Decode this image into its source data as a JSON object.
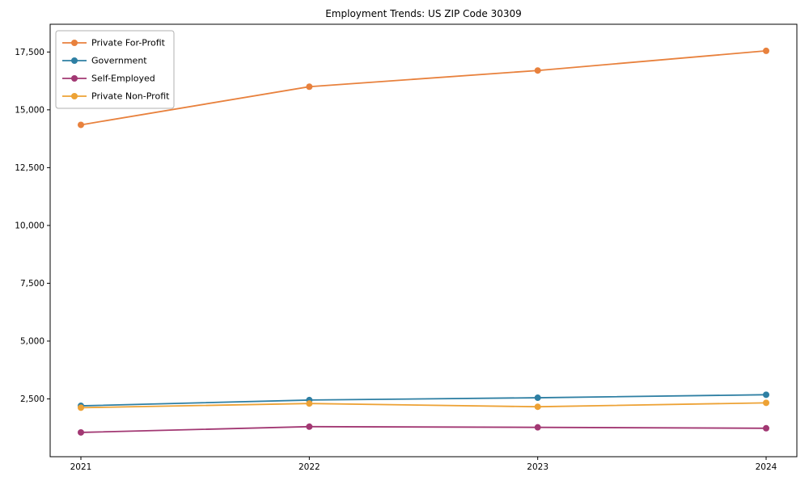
{
  "page": {
    "background_color": "#ffffff",
    "frame_color": "#000000",
    "legend_border_color": "#b0b0b0"
  },
  "chart_data": {
    "type": "line",
    "title": "Employment Trends: US ZIP Code 30309",
    "categories": [
      "2021",
      "2022",
      "2023",
      "2024"
    ],
    "series": [
      {
        "name": "Private For-Profit",
        "color": "#e8813d",
        "values": [
          14350,
          16000,
          16700,
          17550
        ]
      },
      {
        "name": "Government",
        "color": "#2e7fa3",
        "values": [
          2200,
          2450,
          2550,
          2680
        ]
      },
      {
        "name": "Self-Employed",
        "color": "#a23873",
        "values": [
          1050,
          1300,
          1270,
          1230
        ]
      },
      {
        "name": "Private Non-Profit",
        "color": "#eda235",
        "values": [
          2120,
          2300,
          2160,
          2330
        ]
      }
    ],
    "xlabel": "",
    "ylabel": "",
    "ylim": [
      0,
      18700
    ],
    "yticks": [
      2500,
      5000,
      7500,
      10000,
      12500,
      15000,
      17500
    ],
    "ytick_labels": [
      "2,500",
      "5,000",
      "7,500",
      "10,000",
      "12,500",
      "15,000",
      "17,500"
    ],
    "grid": false,
    "legend_position": "upper left",
    "marker": "circle"
  }
}
